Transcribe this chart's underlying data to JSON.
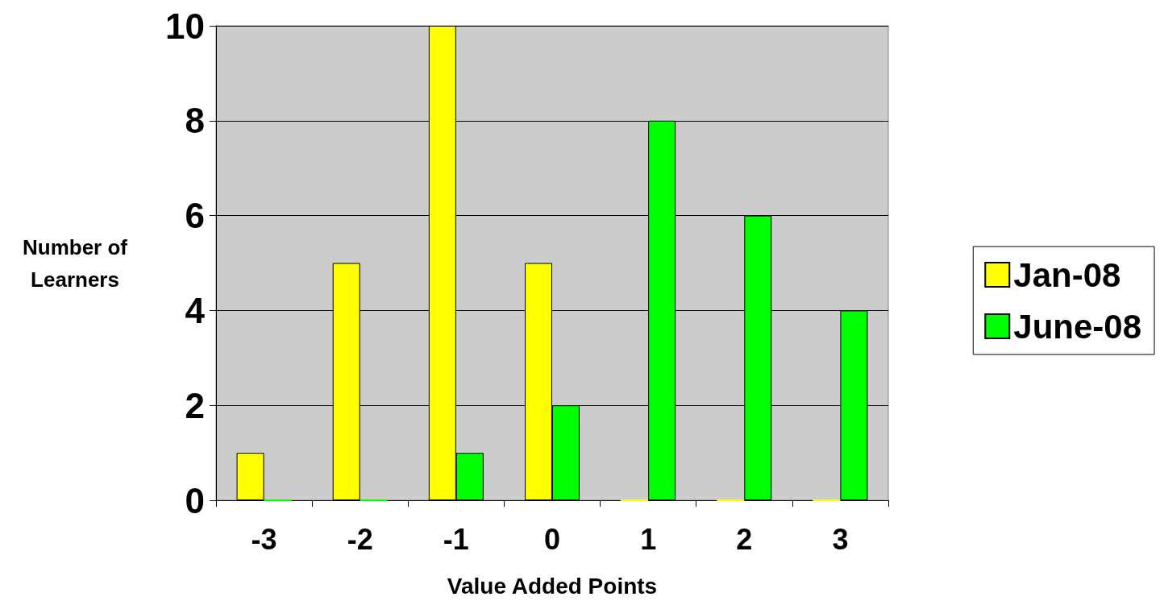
{
  "chart_data": {
    "type": "bar",
    "xlabel": "Value Added Points",
    "ylabel": "Number of\nLearners",
    "categories": [
      "-3",
      "-2",
      "-1",
      "0",
      "1",
      "2",
      "3"
    ],
    "series": [
      {
        "name": "Jan-08",
        "color": "#ffff00",
        "values": [
          1,
          5,
          10,
          5,
          0,
          0,
          0
        ]
      },
      {
        "name": "June-08",
        "color": "#00ff00",
        "values": [
          0,
          0,
          1,
          2,
          8,
          6,
          4
        ]
      }
    ],
    "ylim": [
      0,
      10
    ],
    "yticks": [
      0,
      2,
      4,
      6,
      8,
      10
    ],
    "grid": "y",
    "legend": "right"
  }
}
